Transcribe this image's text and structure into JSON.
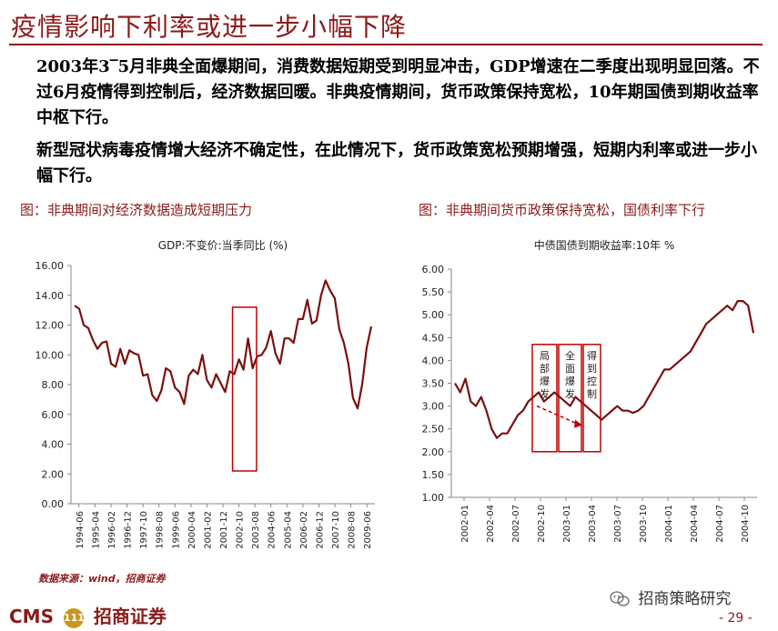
{
  "header": {
    "title": "疫情影响下利率或进一步小幅下降"
  },
  "body": {
    "paragraph1": "2003年3‾5月非典全面爆期间，消费数据短期受到明显冲击，GDP增速在二季度出现明显回落。不过6月疫情得到控制后，经济数据回暖。非典疫情期间，货币政策保持宽松，10年期国债到期收益率中枢下行。",
    "paragraph2": "新型冠状病毒疫情增大经济不确定性，在此情况下，货币政策宽松预期增强，短期内利率或进一步小幅下行。"
  },
  "captions": {
    "left": "图：非典期间对经济数据造成短期压力",
    "right": "图：非典期间货币政策保持宽松，国债利率下行"
  },
  "chart_data": [
    {
      "type": "line",
      "title": "GDP:不变价:当季同比 (%)",
      "color": "#7b1010",
      "ylim": [
        0,
        16
      ],
      "yticks": [
        "0.00",
        "2.00",
        "4.00",
        "6.00",
        "8.00",
        "10.00",
        "12.00",
        "14.00",
        "16.00"
      ],
      "xticks": [
        "1994-06",
        "1995-04",
        "1996-02",
        "1996-12",
        "1997-10",
        "1998-08",
        "1999-06",
        "2000-04",
        "2001-02",
        "2001-12",
        "2002-10",
        "2003-08",
        "2004-06",
        "2005-04",
        "2006-02",
        "2006-12",
        "2007-10",
        "2008-08",
        "2009-06"
      ],
      "values": [
        13.3,
        13.1,
        12.0,
        11.8,
        11.0,
        10.4,
        10.8,
        10.9,
        9.4,
        9.2,
        10.4,
        9.4,
        10.3,
        10.1,
        10.0,
        8.6,
        8.7,
        7.3,
        6.9,
        7.6,
        9.1,
        8.9,
        7.8,
        7.5,
        6.7,
        8.6,
        9.0,
        8.7,
        10.0,
        8.3,
        7.8,
        8.7,
        8.1,
        7.5,
        8.9,
        8.7,
        9.7,
        9.0,
        11.1,
        9.1,
        9.9,
        10.0,
        10.5,
        11.6,
        10.1,
        9.4,
        11.1,
        11.1,
        10.8,
        12.4,
        12.4,
        13.7,
        12.1,
        12.3,
        14.0,
        15.0,
        14.3,
        13.8,
        11.7,
        10.8,
        9.4,
        7.1,
        6.4,
        8.0,
        10.5,
        11.9
      ],
      "highlight_range": [
        "2002-10",
        "2003-08"
      ]
    },
    {
      "type": "line",
      "title": "中债国债到期收益率:10年 %",
      "color": "#7b1010",
      "ylim": [
        1,
        6
      ],
      "yticks": [
        "1.00",
        "1.50",
        "2.00",
        "2.50",
        "3.00",
        "3.50",
        "4.00",
        "4.50",
        "5.00",
        "5.50",
        "6.00"
      ],
      "xticks": [
        "2002-01",
        "2002-04",
        "2002-07",
        "2002-10",
        "2003-01",
        "2003-04",
        "2003-07",
        "2003-10",
        "2004-01",
        "2004-04",
        "2004-07",
        "2004-10"
      ],
      "values": [
        3.5,
        3.3,
        3.6,
        3.1,
        3.0,
        3.2,
        2.9,
        2.5,
        2.3,
        2.4,
        2.4,
        2.6,
        2.8,
        2.9,
        3.1,
        3.2,
        3.3,
        3.1,
        3.2,
        3.3,
        3.2,
        3.1,
        3.0,
        3.2,
        3.1,
        3.0,
        2.9,
        2.8,
        2.7,
        2.8,
        2.9,
        3.0,
        2.9,
        2.9,
        2.85,
        2.9,
        3.0,
        3.2,
        3.4,
        3.6,
        3.8,
        3.8,
        3.9,
        4.0,
        4.1,
        4.2,
        4.4,
        4.6,
        4.8,
        4.9,
        5.0,
        5.1,
        5.2,
        5.1,
        5.3,
        5.3,
        5.2,
        4.6
      ],
      "annotations": [
        "局部爆发",
        "全面爆发",
        "得到控制"
      ]
    }
  ],
  "footer": {
    "source": "数据来源：wind，招商证券",
    "brand_left": "CMS",
    "brand_logo_text": "111",
    "brand_right": "招商证券",
    "wechat": "招商策略研究",
    "page": "- 29 -"
  }
}
